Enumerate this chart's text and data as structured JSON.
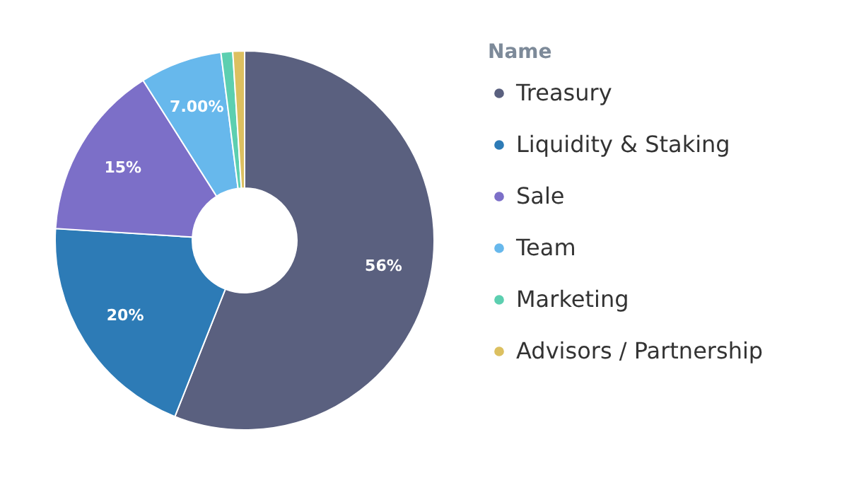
{
  "chart_data": {
    "type": "donut",
    "legend_title": "Name",
    "categories": [
      "Treasury",
      "Liquidity & Staking",
      "Sale",
      "Team",
      "Marketing",
      "Advisors / Partnership"
    ],
    "values": [
      56,
      20,
      15,
      7,
      1,
      1
    ],
    "value_labels": [
      "56%",
      "20%",
      "15%",
      "7.00%",
      null,
      null
    ],
    "colors": [
      "#5a607f",
      "#2d7bb6",
      "#7c6fc8",
      "#67b8ec",
      "#5ccfb0",
      "#dcc060"
    ],
    "legend": "right"
  }
}
